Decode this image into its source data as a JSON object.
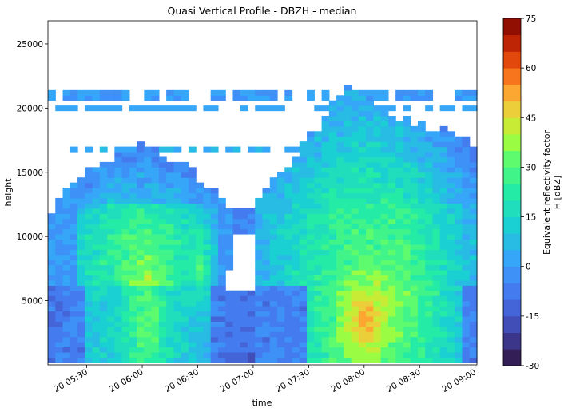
{
  "chart_data": {
    "type": "heatmap",
    "title": "Quasi Vertical Profile - DBZH - median",
    "xlabel": "time",
    "ylabel": "height",
    "x_ticks": [
      "20 05:30",
      "20 06:00",
      "20 06:30",
      "20 07:00",
      "20 07:30",
      "20 08:00",
      "20 08:30",
      "20 09:00"
    ],
    "x_tick_minutes": [
      330,
      360,
      390,
      420,
      450,
      480,
      510,
      540
    ],
    "xlim_minutes": [
      309,
      541
    ],
    "y_ticks": [
      "5000",
      "10000",
      "15000",
      "20000",
      "25000"
    ],
    "y_tick_values": [
      5000,
      10000,
      15000,
      20000,
      25000
    ],
    "ylim": [
      0,
      26800
    ],
    "colorbar": {
      "label_line1": "Equivalent reflectivity factor",
      "label_line2": "H [dBZ]",
      "ticks": [
        "-30",
        "-15",
        "0",
        "15",
        "30",
        "45",
        "60",
        "75"
      ],
      "tick_values": [
        -30,
        -15,
        0,
        15,
        30,
        45,
        60,
        75
      ],
      "range": [
        -30,
        75
      ],
      "levels": 21
    },
    "grid": false,
    "echo_periods": [
      {
        "name": "first",
        "start_minute": 309,
        "end_minute": 404,
        "top_height": 17800,
        "core_dbz": 45
      },
      {
        "name": "second",
        "start_minute": 418,
        "end_minute": 541,
        "top_height": 24300,
        "core_dbz": 50
      }
    ],
    "cirrus_layers": [
      {
        "height": 20800,
        "dbz": 0
      },
      {
        "height": 19800,
        "dbz": 3
      },
      {
        "height": 16700,
        "dbz": 5
      }
    ]
  }
}
